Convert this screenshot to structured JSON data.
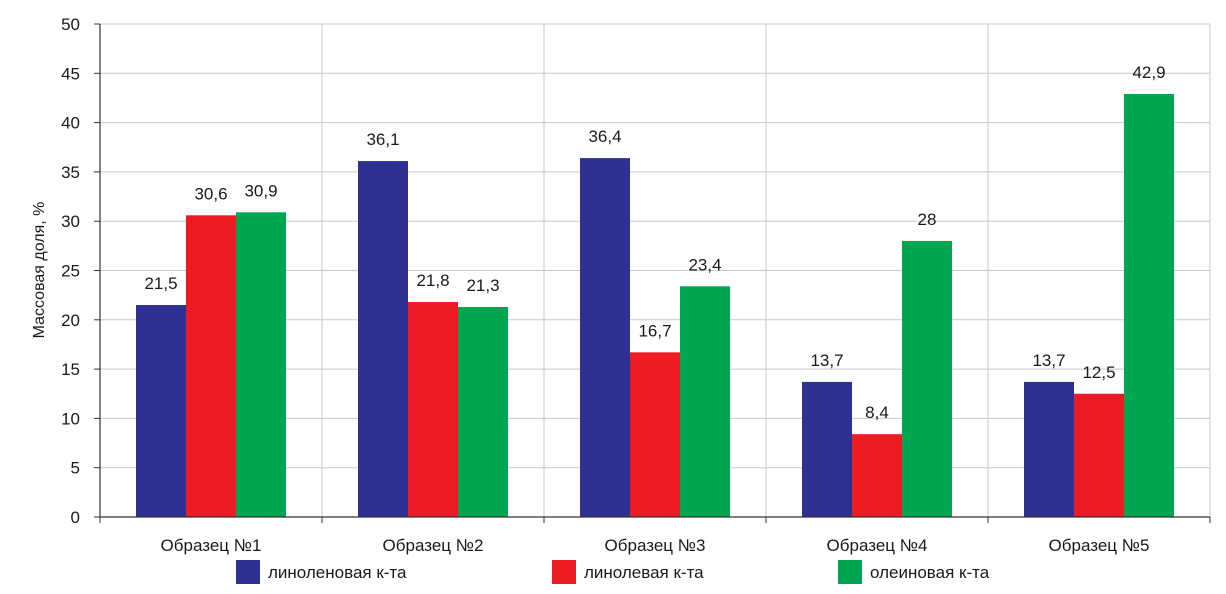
{
  "chart_data": {
    "type": "bar",
    "ylabel": "Массовая доля, %",
    "xlabel": "",
    "ylim": [
      0,
      50
    ],
    "yticks": [
      0,
      5,
      10,
      15,
      20,
      25,
      30,
      35,
      40,
      45,
      50
    ],
    "grid": true,
    "legend_position": "bottom",
    "categories": [
      "Образец №1",
      "Образец №2",
      "Образец №3",
      "Образец №4",
      "Образец №5"
    ],
    "series": [
      {
        "name": "линоленовая к-та",
        "color": "#2e3192",
        "values": [
          21.5,
          36.1,
          36.4,
          13.7,
          13.7
        ],
        "labels": [
          "21,5",
          "36,1",
          "36,4",
          "13,7",
          "13,7"
        ]
      },
      {
        "name": "линолевая к-та",
        "color": "#ed1c24",
        "values": [
          30.6,
          21.8,
          16.7,
          8.4,
          12.5
        ],
        "labels": [
          "30,6",
          "21,8",
          "16,7",
          "8,4",
          "12,5"
        ]
      },
      {
        "name": "олеиновая к-та",
        "color": "#00a651",
        "values": [
          30.9,
          21.3,
          23.4,
          28,
          42.9
        ],
        "labels": [
          "30,9",
          "21,3",
          "23,4",
          "28",
          "42,9"
        ]
      }
    ]
  }
}
